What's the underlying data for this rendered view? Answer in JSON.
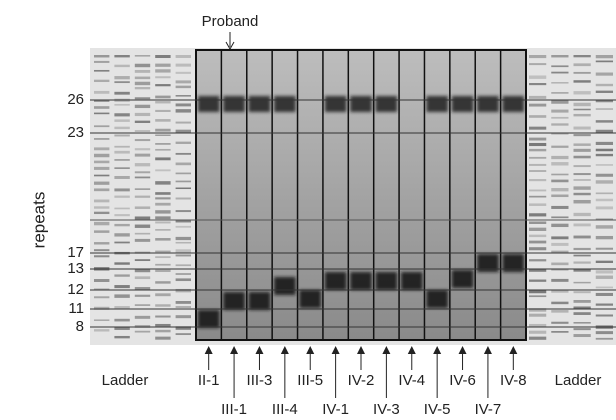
{
  "proband": "Proband",
  "axis_label": "repeats",
  "size_labels": [
    26,
    23,
    17,
    13,
    12,
    11,
    8
  ],
  "lanes": [
    "II-1",
    "III-1",
    "III-3",
    "III-4",
    "III-5",
    "IV-1",
    "IV-2",
    "IV-3",
    "IV-4",
    "IV-5",
    "IV-6",
    "IV-7",
    "IV-8"
  ],
  "ladder_labels": [
    "Ladder",
    "Ladder"
  ]
}
